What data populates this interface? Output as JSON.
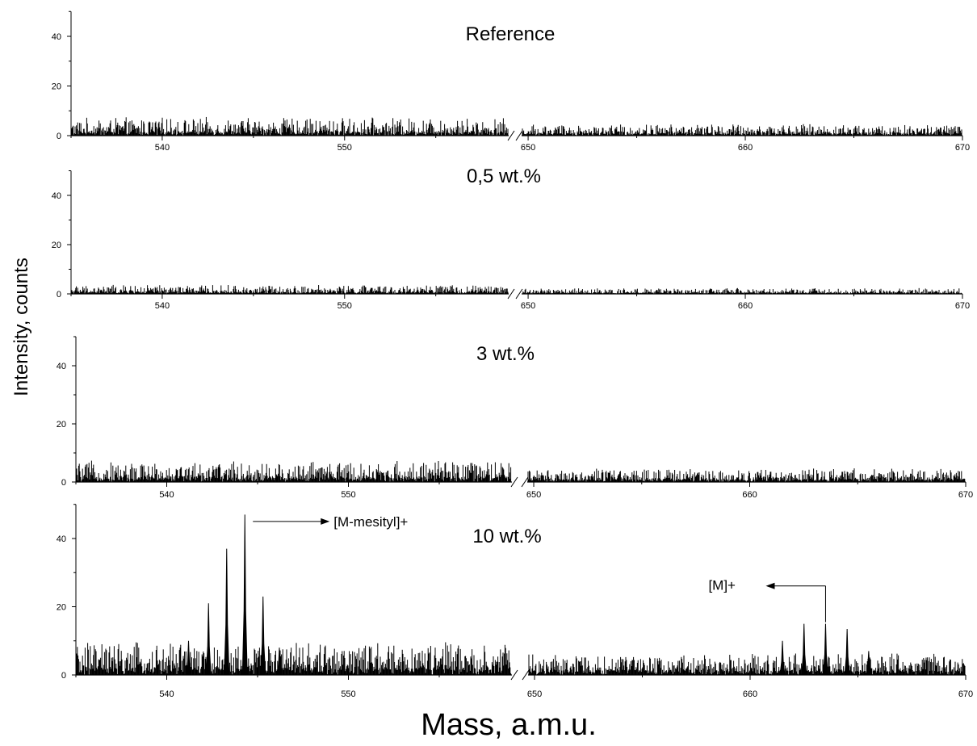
{
  "chart_data": {
    "type": "line",
    "xlabel": "Mass, a.m.u.",
    "ylabel": "Intensity, counts",
    "x_segments": [
      [
        535,
        559
      ],
      [
        649.7,
        670
      ]
    ],
    "x_ticks": [
      540,
      550,
      650,
      660,
      670
    ],
    "y_ticks": [
      0,
      20,
      40
    ],
    "ylim": [
      0,
      50
    ],
    "axis_break_between": [
      559,
      650
    ],
    "panels": [
      {
        "title": "Reference",
        "noise_level": 6,
        "peaks": []
      },
      {
        "title": "0,5 wt.%",
        "noise_level": 3,
        "peaks": []
      },
      {
        "title": "3 wt.%",
        "noise_level": 6,
        "peaks": []
      },
      {
        "title": "10 wt.%",
        "noise_level": 8,
        "peaks": [
          {
            "x": 541.2,
            "y": 10
          },
          {
            "x": 542.3,
            "y": 21
          },
          {
            "x": 543.3,
            "y": 37
          },
          {
            "x": 544.3,
            "y": 47
          },
          {
            "x": 545.3,
            "y": 23
          },
          {
            "x": 546.2,
            "y": 8
          },
          {
            "x": 661.5,
            "y": 10
          },
          {
            "x": 662.5,
            "y": 15
          },
          {
            "x": 663.5,
            "y": 15
          },
          {
            "x": 664.5,
            "y": 13.5
          },
          {
            "x": 665.5,
            "y": 7
          }
        ],
        "annotations": [
          {
            "text": "[M-mesityl]+",
            "x": 544.3,
            "y": 45
          },
          {
            "text": "[M]+",
            "x": 663.5,
            "y": 28
          }
        ]
      }
    ]
  }
}
